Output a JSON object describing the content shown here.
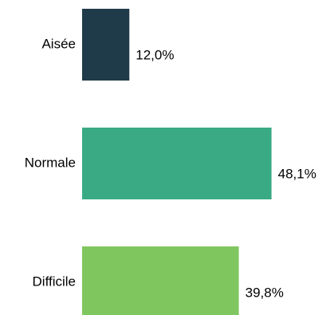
{
  "chart_data": {
    "type": "bar",
    "orientation": "horizontal",
    "categories": [
      "Aisée",
      "Normale",
      "Difficile"
    ],
    "values": [
      12.0,
      48.1,
      39.8
    ],
    "value_labels": [
      "12,0%",
      "48,1%",
      "39,8%"
    ],
    "colors": [
      "#1f3a48",
      "#3aaa85",
      "#80c65f"
    ],
    "title": "",
    "xlabel": "",
    "ylabel": "",
    "grid": false,
    "legend": "none"
  }
}
